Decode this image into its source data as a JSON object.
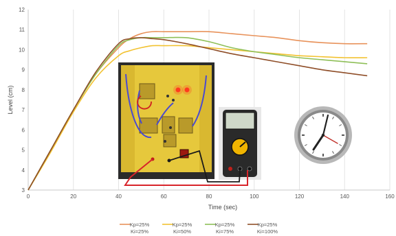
{
  "chart_data": {
    "type": "line",
    "xlabel": "Time (sec)",
    "ylabel": "Level (cm)",
    "xlim": [
      0,
      160
    ],
    "ylim": [
      3,
      12
    ],
    "xticks": [
      0,
      20,
      40,
      60,
      80,
      100,
      120,
      140,
      160
    ],
    "yticks": [
      3,
      4,
      5,
      6,
      7,
      8,
      9,
      10,
      11,
      12
    ],
    "grid": "vertical",
    "legend_position": "bottom",
    "series": [
      {
        "name_line1": "Kp=25%",
        "name_line2": "Ki=25%",
        "color": "#e8925a",
        "x": [
          0,
          10,
          20,
          30,
          40,
          45,
          50,
          55,
          60,
          70,
          80,
          90,
          100,
          110,
          120,
          130,
          140,
          150
        ],
        "y": [
          3.0,
          5.0,
          7.0,
          8.8,
          10.1,
          10.55,
          10.8,
          10.9,
          10.9,
          10.9,
          10.9,
          10.8,
          10.7,
          10.6,
          10.45,
          10.35,
          10.3,
          10.3
        ]
      },
      {
        "name_line1": "Kp=25%",
        "name_line2": "Ki=50%",
        "color": "#f2c230",
        "x": [
          0,
          10,
          20,
          30,
          40,
          45,
          50,
          55,
          60,
          70,
          80,
          90,
          100,
          110,
          120,
          130,
          140,
          150
        ],
        "y": [
          3.0,
          4.9,
          6.9,
          8.6,
          9.7,
          9.95,
          10.1,
          10.2,
          10.2,
          10.2,
          10.1,
          10.0,
          9.9,
          9.8,
          9.7,
          9.65,
          9.6,
          9.6
        ]
      },
      {
        "name_line1": "Kp=25%",
        "name_line2": "Ki=75%",
        "color": "#8ebf57",
        "x": [
          0,
          10,
          20,
          30,
          40,
          45,
          50,
          55,
          60,
          70,
          80,
          90,
          100,
          110,
          120,
          130,
          140,
          150
        ],
        "y": [
          3.0,
          5.0,
          7.0,
          8.8,
          10.2,
          10.5,
          10.6,
          10.6,
          10.6,
          10.6,
          10.4,
          10.1,
          9.9,
          9.75,
          9.6,
          9.5,
          9.4,
          9.3
        ]
      },
      {
        "name_line1": "Kp=25%",
        "name_line2": "Ki=100%",
        "color": "#8f4e28",
        "x": [
          0,
          10,
          20,
          30,
          40,
          45,
          50,
          55,
          60,
          70,
          80,
          90,
          100,
          110,
          120,
          130,
          140,
          150
        ],
        "y": [
          3.0,
          5.0,
          7.0,
          8.9,
          10.3,
          10.55,
          10.6,
          10.55,
          10.5,
          10.3,
          10.05,
          9.8,
          9.6,
          9.4,
          9.2,
          9.0,
          8.85,
          8.7
        ]
      }
    ]
  },
  "overlays": {
    "trainer_photo": {
      "panel_color": "#e6c83c",
      "led_color": "#ff3b1e"
    },
    "multimeter_photo": {
      "body_color": "#2a2a2a",
      "accent_color": "#f0b400"
    },
    "clock_icon": {
      "icon": "wall-clock-icon",
      "hand_color": "#c0302a"
    },
    "wire_colors": {
      "red": "#d8232a",
      "black": "#1a1a1a"
    }
  }
}
